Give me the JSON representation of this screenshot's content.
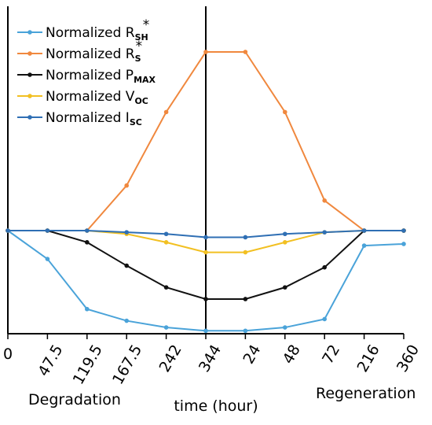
{
  "chart_data": {
    "type": "line",
    "categories": [
      "0",
      "47.5",
      "119.5",
      "167.5",
      "242",
      "344",
      "24",
      "48",
      "72",
      "216",
      "360"
    ],
    "xlabel": "time (hour)",
    "annotations": {
      "left": "Degradation",
      "right": "Regeneration"
    },
    "ylim": [
      0.2,
      1.8
    ],
    "grid": false,
    "legend_position": "top-left",
    "series": [
      {
        "name": "Normalized R",
        "sub": "SH",
        "sup": "*",
        "color": "#4aa3d9",
        "values": [
          1.0,
          0.83,
          0.53,
          0.46,
          0.42,
          0.4,
          0.4,
          0.42,
          0.47,
          0.91,
          0.92
        ]
      },
      {
        "name": "Normalized R",
        "sub": "S",
        "sup": "*",
        "color": "#f0883e",
        "values": [
          1.0,
          1.0,
          1.0,
          1.27,
          1.71,
          2.07,
          2.07,
          1.71,
          1.18,
          1.0,
          1.0
        ]
      },
      {
        "name": "Normalized P",
        "sub": "MAX",
        "sup": "",
        "color": "#111111",
        "values": [
          1.0,
          1.0,
          0.93,
          0.79,
          0.66,
          0.59,
          0.59,
          0.66,
          0.78,
          1.0,
          1.0
        ]
      },
      {
        "name": "Normalized V",
        "sub": "OC",
        "sup": "",
        "color": "#f2c022",
        "values": [
          1.0,
          1.0,
          1.0,
          0.98,
          0.93,
          0.87,
          0.87,
          0.93,
          0.99,
          1.0,
          1.0
        ]
      },
      {
        "name": "Normalized I",
        "sub": "SC",
        "sup": "",
        "color": "#2f6fb4",
        "values": [
          1.0,
          1.0,
          1.0,
          0.99,
          0.98,
          0.96,
          0.96,
          0.98,
          0.99,
          1.0,
          1.0
        ]
      }
    ]
  }
}
